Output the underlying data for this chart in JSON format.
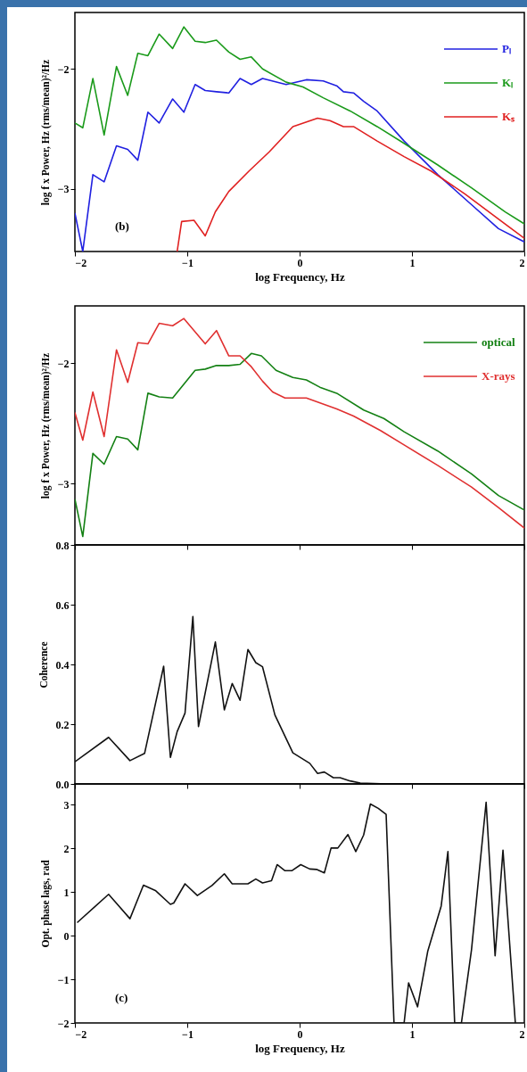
{
  "chart_data": [
    {
      "type": "line",
      "ylabel": "log f x Power, Hz (rms/mean)²/Hz",
      "xlabel": "log Frequency, Hz",
      "xlim": [
        -2,
        2
      ],
      "xticks": [
        -2,
        -1,
        0,
        1,
        2
      ],
      "ylim": [
        -3.52,
        -1.53
      ],
      "yticks": [
        -3,
        -2
      ],
      "legend": "top right",
      "annotations": [
        "(b)"
      ],
      "series": [
        {
          "name": "Pₗ",
          "color": "#2020e0",
          "x": [
            -2,
            -1.93,
            -1.84,
            -1.74,
            -1.63,
            -1.53,
            -1.44,
            -1.35,
            -1.25,
            -1.13,
            -1.03,
            -0.93,
            -0.84,
            -0.74,
            -0.63,
            -0.53,
            -0.43,
            -0.33,
            -0.12,
            0.06,
            0.21,
            0.33,
            0.39,
            0.48,
            0.57,
            0.69,
            0.93,
            1.23,
            1.53,
            1.77,
            2
          ],
          "values": [
            -3.2,
            -3.52,
            -2.88,
            -2.94,
            -2.64,
            -2.67,
            -2.76,
            -2.36,
            -2.45,
            -2.25,
            -2.36,
            -2.13,
            -2.18,
            -2.19,
            -2.2,
            -2.08,
            -2.13,
            -2.08,
            -2.13,
            -2.09,
            -2.1,
            -2.14,
            -2.19,
            -2.2,
            -2.27,
            -2.35,
            -2.6,
            -2.88,
            -3.13,
            -3.33,
            -3.44
          ]
        },
        {
          "name": "Kₗ",
          "color": "#1a9a1a",
          "x": [
            -2,
            -1.93,
            -1.84,
            -1.74,
            -1.63,
            -1.53,
            -1.44,
            -1.35,
            -1.25,
            -1.13,
            -1.03,
            -0.93,
            -0.84,
            -0.74,
            -0.63,
            -0.53,
            -0.43,
            -0.33,
            -0.12,
            0.03,
            0.21,
            0.45,
            0.69,
            0.93,
            1.23,
            1.53,
            1.83,
            2
          ],
          "values": [
            -2.45,
            -2.49,
            -2.08,
            -2.55,
            -1.98,
            -2.22,
            -1.87,
            -1.89,
            -1.71,
            -1.83,
            -1.65,
            -1.77,
            -1.78,
            -1.76,
            -1.86,
            -1.92,
            -1.9,
            -2,
            -2.11,
            -2.15,
            -2.24,
            -2.35,
            -2.48,
            -2.62,
            -2.8,
            -2.99,
            -3.19,
            -3.29
          ]
        },
        {
          "name": "Kₛ",
          "color": "#e02020",
          "x": [
            -1.09,
            -1.05,
            -0.94,
            -0.84,
            -0.75,
            -0.63,
            -0.45,
            -0.27,
            -0.06,
            0.16,
            0.27,
            0.39,
            0.48,
            0.69,
            0.93,
            1.17,
            1.47,
            1.77,
            2
          ],
          "values": [
            -3.52,
            -3.27,
            -3.26,
            -3.39,
            -3.19,
            -3.02,
            -2.85,
            -2.69,
            -2.48,
            -2.41,
            -2.43,
            -2.48,
            -2.48,
            -2.6,
            -2.73,
            -2.85,
            -3.04,
            -3.25,
            -3.41
          ]
        }
      ]
    },
    {
      "type": "line",
      "ylabel": "log f x Power, Hz (rms/mean)²/Hz",
      "xlim": [
        -2,
        2
      ],
      "xticks": [
        -2,
        -1,
        0,
        1,
        2
      ],
      "ylim": [
        -3.51,
        -1.525
      ],
      "yticks": [
        -3,
        -2
      ],
      "tick_labels": "y",
      "legend": "top right",
      "series": [
        {
          "name": "optical",
          "color": "#138013",
          "x": [
            -2,
            -1.93,
            -1.84,
            -1.74,
            -1.63,
            -1.53,
            -1.44,
            -1.35,
            -1.25,
            -1.13,
            -0.93,
            -0.84,
            -0.74,
            -0.63,
            -0.53,
            -0.43,
            -0.34,
            -0.21,
            -0.06,
            0.06,
            0.18,
            0.33,
            0.57,
            0.75,
            0.93,
            1.23,
            1.53,
            1.77,
            2
          ],
          "values": [
            -3.13,
            -3.44,
            -2.75,
            -2.84,
            -2.61,
            -2.63,
            -2.72,
            -2.25,
            -2.28,
            -2.29,
            -2.06,
            -2.05,
            -2.02,
            -2.02,
            -2.01,
            -1.92,
            -1.94,
            -2.06,
            -2.12,
            -2.14,
            -2.2,
            -2.25,
            -2.39,
            -2.46,
            -2.57,
            -2.73,
            -2.92,
            -3.1,
            -3.22
          ]
        },
        {
          "name": "X-rays",
          "color": "#e03030",
          "x": [
            -2,
            -1.93,
            -1.84,
            -1.74,
            -1.63,
            -1.53,
            -1.44,
            -1.35,
            -1.25,
            -1.13,
            -1.03,
            -0.84,
            -0.74,
            -0.63,
            -0.53,
            -0.43,
            -0.33,
            -0.24,
            -0.13,
            0.06,
            0.33,
            0.48,
            0.72,
            0.93,
            1.23,
            1.53,
            1.77,
            2
          ],
          "values": [
            -2.41,
            -2.64,
            -2.24,
            -2.61,
            -1.89,
            -2.16,
            -1.83,
            -1.84,
            -1.67,
            -1.69,
            -1.63,
            -1.84,
            -1.73,
            -1.94,
            -1.94,
            -2.03,
            -2.15,
            -2.24,
            -2.29,
            -2.29,
            -2.38,
            -2.44,
            -2.56,
            -2.68,
            -2.85,
            -3.03,
            -3.2,
            -3.37
          ]
        }
      ]
    },
    {
      "type": "line",
      "ylabel": "Coherence",
      "xlim": [
        -2,
        2
      ],
      "xticks": [
        -2,
        -1,
        0,
        1,
        2
      ],
      "ylim": [
        0,
        0.8
      ],
      "yticks": [
        {
          "value": 0,
          "label": "0.0"
        },
        0.2,
        0.4,
        0.6,
        0.8
      ],
      "tick_labels": "y",
      "series": [
        {
          "color": "#111111",
          "x": [
            -2,
            -1.7,
            -1.51,
            -1.38,
            -1.21,
            -1.15,
            -1.09,
            -1.02,
            -0.95,
            -0.9,
            -0.75,
            -0.67,
            -0.6,
            -0.53,
            -0.46,
            -0.39,
            -0.33,
            -0.22,
            -0.06,
            0.09,
            0.16,
            0.22,
            0.3,
            0.36,
            0.45,
            0.54,
            0.78,
            2
          ],
          "values": [
            0.074,
            0.156,
            0.078,
            0.102,
            0.394,
            0.089,
            0.175,
            0.237,
            0.56,
            0.192,
            0.475,
            0.248,
            0.336,
            0.28,
            0.45,
            0.406,
            0.392,
            0.231,
            0.104,
            0.069,
            0.035,
            0.04,
            0.021,
            0.021,
            0.01,
            0.003,
            0,
            0
          ]
        }
      ]
    },
    {
      "type": "line",
      "ylabel": "Opt. phase lags, rad",
      "xlabel": "log Frequency, Hz",
      "xlim": [
        -2,
        2
      ],
      "xticks": [
        -2,
        -1,
        0,
        1,
        2
      ],
      "ylim": [
        -2,
        3.48
      ],
      "yticks": [
        -2,
        -1,
        0,
        1,
        2,
        3
      ],
      "annotations": [
        "(c)"
      ],
      "series": [
        {
          "color": "#111111",
          "x": [
            -1.98,
            -1.7,
            -1.51,
            -1.39,
            -1.28,
            -1.15,
            -1.12,
            -1.02,
            -0.91,
            -0.78,
            -0.67,
            -0.6,
            -0.46,
            -0.39,
            -0.33,
            -0.25,
            -0.2,
            -0.13,
            -0.07,
            0.01,
            0.09,
            0.15,
            0.22,
            0.28,
            0.34,
            0.43,
            0.5,
            0.57,
            0.63,
            0.7,
            0.77,
            0.84,
            0.93,
            0.97,
            1.05,
            1.14,
            1.26,
            1.32,
            1.38,
            1.44,
            1.53,
            1.66,
            1.74,
            1.81,
            1.92
          ],
          "values": [
            0.3,
            0.95,
            0.39,
            1.16,
            1.03,
            0.72,
            0.75,
            1.19,
            0.92,
            1.15,
            1.42,
            1.19,
            1.19,
            1.3,
            1.21,
            1.26,
            1.63,
            1.49,
            1.49,
            1.63,
            1.53,
            1.52,
            1.44,
            2.01,
            2.01,
            2.32,
            1.93,
            2.31,
            3.02,
            2.92,
            2.78,
            -2,
            -2,
            -1.08,
            -1.63,
            -0.36,
            0.68,
            1.93,
            -2,
            -2,
            -0.32,
            3.06,
            -0.46,
            1.96,
            -2
          ]
        }
      ]
    }
  ]
}
